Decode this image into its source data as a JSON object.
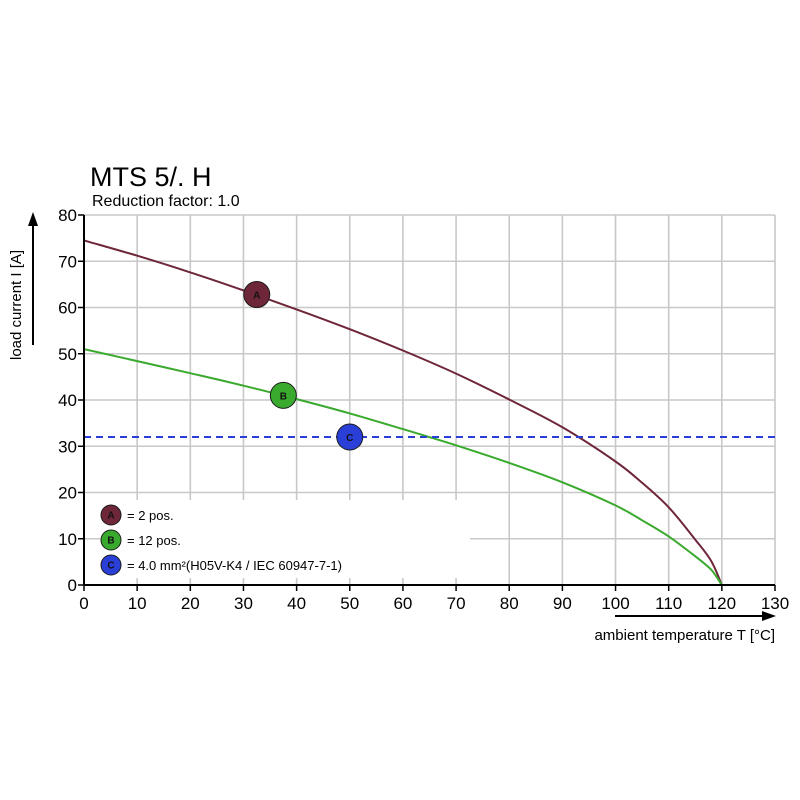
{
  "chart_data": {
    "type": "line",
    "title": "MTS 5/. H",
    "subtitle": "Reduction factor: 1.0",
    "xlabel": "ambient temperature T [°C]",
    "ylabel": "load current I [A]",
    "xlim": [
      0,
      130
    ],
    "ylim": [
      0,
      80
    ],
    "x_ticks": [
      "0",
      "10",
      "20",
      "30",
      "40",
      "50",
      "60",
      "70",
      "80",
      "90",
      "100",
      "110",
      "120",
      "130"
    ],
    "y_ticks": [
      "0",
      "10",
      "20",
      "30",
      "40",
      "50",
      "60",
      "70",
      "80"
    ],
    "grid": true,
    "series": [
      {
        "name": "A",
        "color": "#6e2639",
        "style": "solid",
        "x": [
          0,
          10,
          20,
          30,
          40,
          50,
          60,
          70,
          80,
          90,
          100,
          105,
          110,
          115,
          118,
          120
        ],
        "y": [
          74.5,
          71.2,
          67.6,
          63.7,
          59.6,
          55.3,
          50.7,
          45.7,
          40.1,
          34.1,
          26.7,
          22.1,
          16.8,
          9.8,
          5.2,
          0
        ]
      },
      {
        "name": "B",
        "color": "#3aaa2e",
        "style": "solid",
        "x": [
          0,
          10,
          20,
          30,
          40,
          50,
          60,
          70,
          80,
          90,
          100,
          105,
          110,
          115,
          118,
          120
        ],
        "y": [
          51,
          48.4,
          45.8,
          43.1,
          40.2,
          37.1,
          33.7,
          30.2,
          26.4,
          22.2,
          17.2,
          14.0,
          10.5,
          6.2,
          3.3,
          0
        ]
      },
      {
        "name": "C",
        "color": "#2a3fd8",
        "style": "dashed",
        "x": [
          0,
          130
        ],
        "y": [
          32,
          32
        ]
      }
    ],
    "markers": [
      {
        "label": "A",
        "x": 32.5,
        "y": 62.8,
        "color": "#6e2639"
      },
      {
        "label": "B",
        "x": 37.5,
        "y": 41.0,
        "color": "#3aaa2e"
      },
      {
        "label": "C",
        "x": 50.0,
        "y": 32.0,
        "color": "#2a3fd8"
      }
    ],
    "legend": {
      "placement": "bottom-left",
      "entries": [
        {
          "marker": "A",
          "text": "= 2 pos.",
          "color": "#6e2639"
        },
        {
          "marker": "B",
          "text": "= 12 pos.",
          "color": "#3aaa2e"
        },
        {
          "marker": "C",
          "text": "= 4.0 mm²(H05V-K4 / IEC 60947-7-1)",
          "color": "#2a3fd8"
        }
      ]
    }
  }
}
